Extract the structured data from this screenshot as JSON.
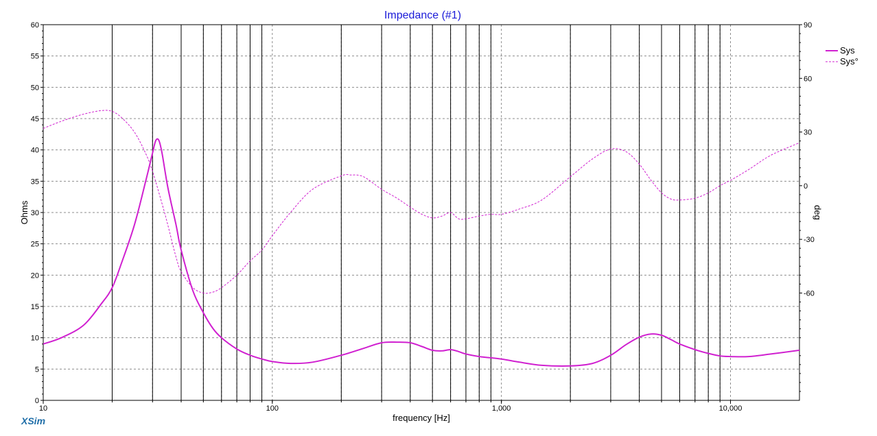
{
  "chart_data": {
    "type": "line",
    "title": "Impedance (#1)",
    "xlabel": "frequency [Hz]",
    "ylabel": "Ohms",
    "y2label": "deg",
    "x_scale": "log",
    "xlim": [
      10,
      20000
    ],
    "ylim": [
      0,
      60
    ],
    "y2lim": [
      -120,
      90
    ],
    "x_tick_labels": [
      "10",
      "100",
      "1,000",
      "10,000"
    ],
    "x_tick_values": [
      10,
      100,
      1000,
      10000
    ],
    "y_ticks": [
      0,
      5,
      10,
      15,
      20,
      25,
      30,
      35,
      40,
      45,
      50,
      55,
      60
    ],
    "y2_ticks": [
      -60,
      -30,
      0,
      30,
      60,
      90
    ],
    "vertical_markers": [
      20,
      30,
      40,
      50,
      60,
      70,
      80,
      90,
      200,
      300,
      400,
      500,
      600,
      700,
      800,
      900,
      2000,
      3000,
      4000,
      5000,
      6000,
      7000,
      8000,
      9000
    ],
    "legend_position": "top-right",
    "series": [
      {
        "name": "Sys",
        "axis": "left",
        "style": "solid",
        "color": "#d020d0",
        "x": [
          10,
          12,
          15,
          18,
          20,
          22,
          25,
          28,
          30,
          31,
          32,
          33,
          35,
          38,
          40,
          45,
          50,
          55,
          60,
          70,
          80,
          90,
          100,
          120,
          150,
          200,
          250,
          300,
          350,
          400,
          450,
          500,
          550,
          600,
          650,
          700,
          800,
          1000,
          1200,
          1500,
          2000,
          2500,
          3000,
          3500,
          4000,
          4500,
          5000,
          5500,
          6000,
          7000,
          8000,
          9000,
          10000,
          12000,
          15000,
          20000
        ],
        "y": [
          9,
          10,
          12,
          15.5,
          18,
          22,
          28,
          35,
          39.5,
          41.5,
          41.5,
          39.5,
          34,
          28,
          24,
          17.5,
          14,
          11.5,
          10,
          8.2,
          7.2,
          6.6,
          6.2,
          5.9,
          6.1,
          7.2,
          8.3,
          9.2,
          9.3,
          9.2,
          8.6,
          8,
          7.9,
          8.1,
          7.8,
          7.4,
          7,
          6.6,
          6.1,
          5.6,
          5.5,
          5.9,
          7.2,
          8.9,
          10.1,
          10.6,
          10.4,
          9.7,
          9,
          8.1,
          7.5,
          7.1,
          7,
          7,
          7.4,
          8
        ]
      },
      {
        "name": "Sys°",
        "axis": "right",
        "style": "dashed",
        "color": "#d020d0",
        "x": [
          10,
          12,
          15,
          18,
          20,
          22,
          25,
          28,
          30,
          33,
          35,
          38,
          40,
          45,
          50,
          55,
          60,
          70,
          80,
          90,
          100,
          120,
          150,
          200,
          220,
          250,
          300,
          350,
          400,
          450,
          500,
          550,
          600,
          650,
          700,
          800,
          900,
          1000,
          1200,
          1500,
          2000,
          2500,
          3000,
          3500,
          4000,
          4500,
          5000,
          5500,
          6000,
          7000,
          8000,
          9000,
          10000,
          12000,
          15000,
          20000
        ],
        "y": [
          32,
          36,
          40,
          42,
          41.5,
          38,
          30,
          18,
          8,
          -10,
          -22,
          -40,
          -48,
          -57,
          -60,
          -59.5,
          -57,
          -50,
          -42,
          -36,
          -28,
          -15,
          -2,
          5.5,
          6,
          5,
          -2,
          -7,
          -12,
          -16,
          -18,
          -17,
          -15,
          -18.5,
          -18.5,
          -17,
          -16,
          -16,
          -13,
          -8,
          5,
          15,
          20.5,
          19,
          12,
          3,
          -4,
          -7.5,
          -8,
          -7,
          -4,
          0,
          3,
          9,
          17,
          24
        ]
      }
    ]
  }
}
